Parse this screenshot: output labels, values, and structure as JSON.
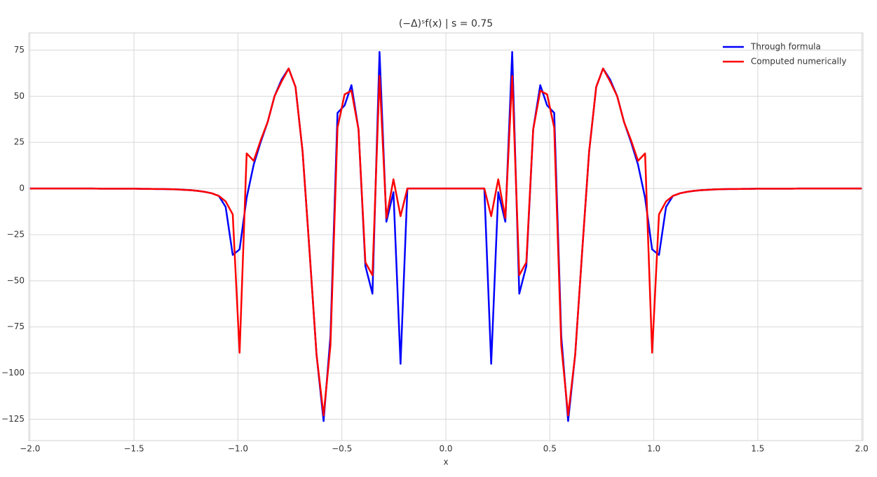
{
  "chart_data": {
    "type": "line",
    "title": "(−Δ)ˢf(x) | s = 0.75",
    "xlabel": "x",
    "x": [
      -2.0,
      -1.966,
      -1.933,
      -1.899,
      -1.866,
      -1.832,
      -1.798,
      -1.765,
      -1.731,
      -1.697,
      -1.664,
      -1.63,
      -1.597,
      -1.563,
      -1.529,
      -1.496,
      -1.462,
      -1.429,
      -1.395,
      -1.361,
      -1.328,
      -1.294,
      -1.261,
      -1.227,
      -1.193,
      -1.16,
      -1.126,
      -1.092,
      -1.059,
      -1.025,
      -0.992,
      -0.958,
      -0.924,
      -0.891,
      -0.857,
      -0.824,
      -0.79,
      -0.756,
      -0.723,
      -0.689,
      -0.655,
      -0.622,
      -0.588,
      -0.555,
      -0.521,
      -0.487,
      -0.454,
      -0.42,
      -0.387,
      -0.353,
      -0.319,
      -0.286,
      -0.252,
      -0.218,
      -0.185,
      -0.151,
      -0.118,
      -0.084,
      -0.05,
      -0.017,
      0.017,
      0.05,
      0.084,
      0.118,
      0.151,
      0.185,
      0.218,
      0.252,
      0.286,
      0.319,
      0.353,
      0.387,
      0.42,
      0.454,
      0.487,
      0.521,
      0.555,
      0.588,
      0.622,
      0.655,
      0.689,
      0.723,
      0.756,
      0.79,
      0.824,
      0.857,
      0.891,
      0.924,
      0.958,
      0.992,
      1.025,
      1.059,
      1.092,
      1.126,
      1.16,
      1.193,
      1.227,
      1.261,
      1.294,
      1.328,
      1.361,
      1.395,
      1.429,
      1.462,
      1.496,
      1.529,
      1.563,
      1.597,
      1.63,
      1.664,
      1.697,
      1.731,
      1.765,
      1.798,
      1.832,
      1.866,
      1.899,
      1.933,
      1.966,
      2.0
    ],
    "series": [
      {
        "name": "Through formula",
        "color": "#0000ff",
        "values": [
          0,
          0,
          0,
          0,
          0,
          0,
          0,
          0,
          0,
          0,
          -0.1,
          -0.1,
          -0.1,
          -0.1,
          -0.1,
          -0.1,
          -0.2,
          -0.2,
          -0.3,
          -0.3,
          -0.4,
          -0.5,
          -0.7,
          -0.9,
          -1.3,
          -1.8,
          -2.6,
          -4,
          -10,
          -36,
          -33,
          -5,
          13,
          25,
          36,
          50,
          59,
          65,
          55,
          20,
          -35,
          -90,
          -126,
          -80,
          41,
          45,
          56,
          32,
          -42,
          -57,
          74,
          -18,
          -2,
          -95,
          0,
          0,
          0,
          0,
          0,
          0,
          0,
          0,
          0,
          0,
          0,
          0,
          -95,
          -2,
          -18,
          74,
          -57,
          -42,
          32,
          56,
          45,
          41,
          -80,
          -126,
          -90,
          -35,
          20,
          55,
          65,
          59,
          50,
          36,
          25,
          13,
          -5,
          -33,
          -36,
          -10,
          -4,
          -2.6,
          -1.8,
          -1.3,
          -0.9,
          -0.7,
          -0.5,
          -0.4,
          -0.3,
          -0.3,
          -0.2,
          -0.2,
          -0.1,
          -0.1,
          -0.1,
          -0.1,
          -0.1,
          -0.1,
          0,
          0,
          0,
          0,
          0,
          0,
          0,
          0,
          0,
          0
        ]
      },
      {
        "name": "Computed numerically",
        "color": "#ff0000",
        "values": [
          0,
          0,
          0,
          0,
          0,
          0,
          0,
          0,
          0,
          0,
          -0.1,
          -0.1,
          -0.1,
          -0.1,
          -0.1,
          -0.1,
          -0.2,
          -0.2,
          -0.3,
          -0.3,
          -0.4,
          -0.5,
          -0.7,
          -0.9,
          -1.3,
          -1.8,
          -2.6,
          -4,
          -7,
          -14,
          -89,
          19,
          15,
          26,
          36,
          50,
          58,
          65,
          55,
          20,
          -35,
          -90,
          -123,
          -85,
          33,
          51,
          53,
          32,
          -40,
          -47,
          61,
          -16,
          5,
          -15,
          0,
          0,
          0,
          0,
          0,
          0,
          0,
          0,
          0,
          0,
          0,
          0,
          -15,
          5,
          -16,
          61,
          -47,
          -40,
          32,
          53,
          51,
          33,
          -85,
          -123,
          -90,
          -35,
          20,
          55,
          65,
          58,
          50,
          36,
          26,
          15,
          19,
          -89,
          -14,
          -7,
          -4,
          -2.6,
          -1.8,
          -1.3,
          -0.9,
          -0.7,
          -0.5,
          -0.4,
          -0.3,
          -0.3,
          -0.2,
          -0.2,
          -0.1,
          -0.1,
          -0.1,
          -0.1,
          -0.1,
          -0.1,
          0,
          0,
          0,
          0,
          0,
          0,
          0,
          0,
          0,
          0
        ]
      }
    ],
    "xlim": [
      -2.006,
      2.006
    ],
    "ylim": [
      -136.6,
      84.3
    ],
    "xticks": [
      {
        "value": -2,
        "label": "−2.0"
      },
      {
        "value": -1.5,
        "label": "−1.5"
      },
      {
        "value": -1,
        "label": "−1.0"
      },
      {
        "value": -0.5,
        "label": "−0.5"
      },
      {
        "value": 0,
        "label": "0.0"
      },
      0.5,
      {
        "value": 1,
        "label": "1.0"
      },
      1.5,
      {
        "value": 2,
        "label": "2.0"
      }
    ],
    "yticks": [
      {
        "value": -125,
        "label": "−125"
      },
      {
        "value": -100,
        "label": "−100"
      },
      {
        "value": -75,
        "label": "−75"
      },
      {
        "value": -50,
        "label": "−50"
      },
      {
        "value": -25,
        "label": "−25"
      },
      0,
      25,
      50,
      75
    ],
    "grid": true,
    "legend": "upper right"
  }
}
